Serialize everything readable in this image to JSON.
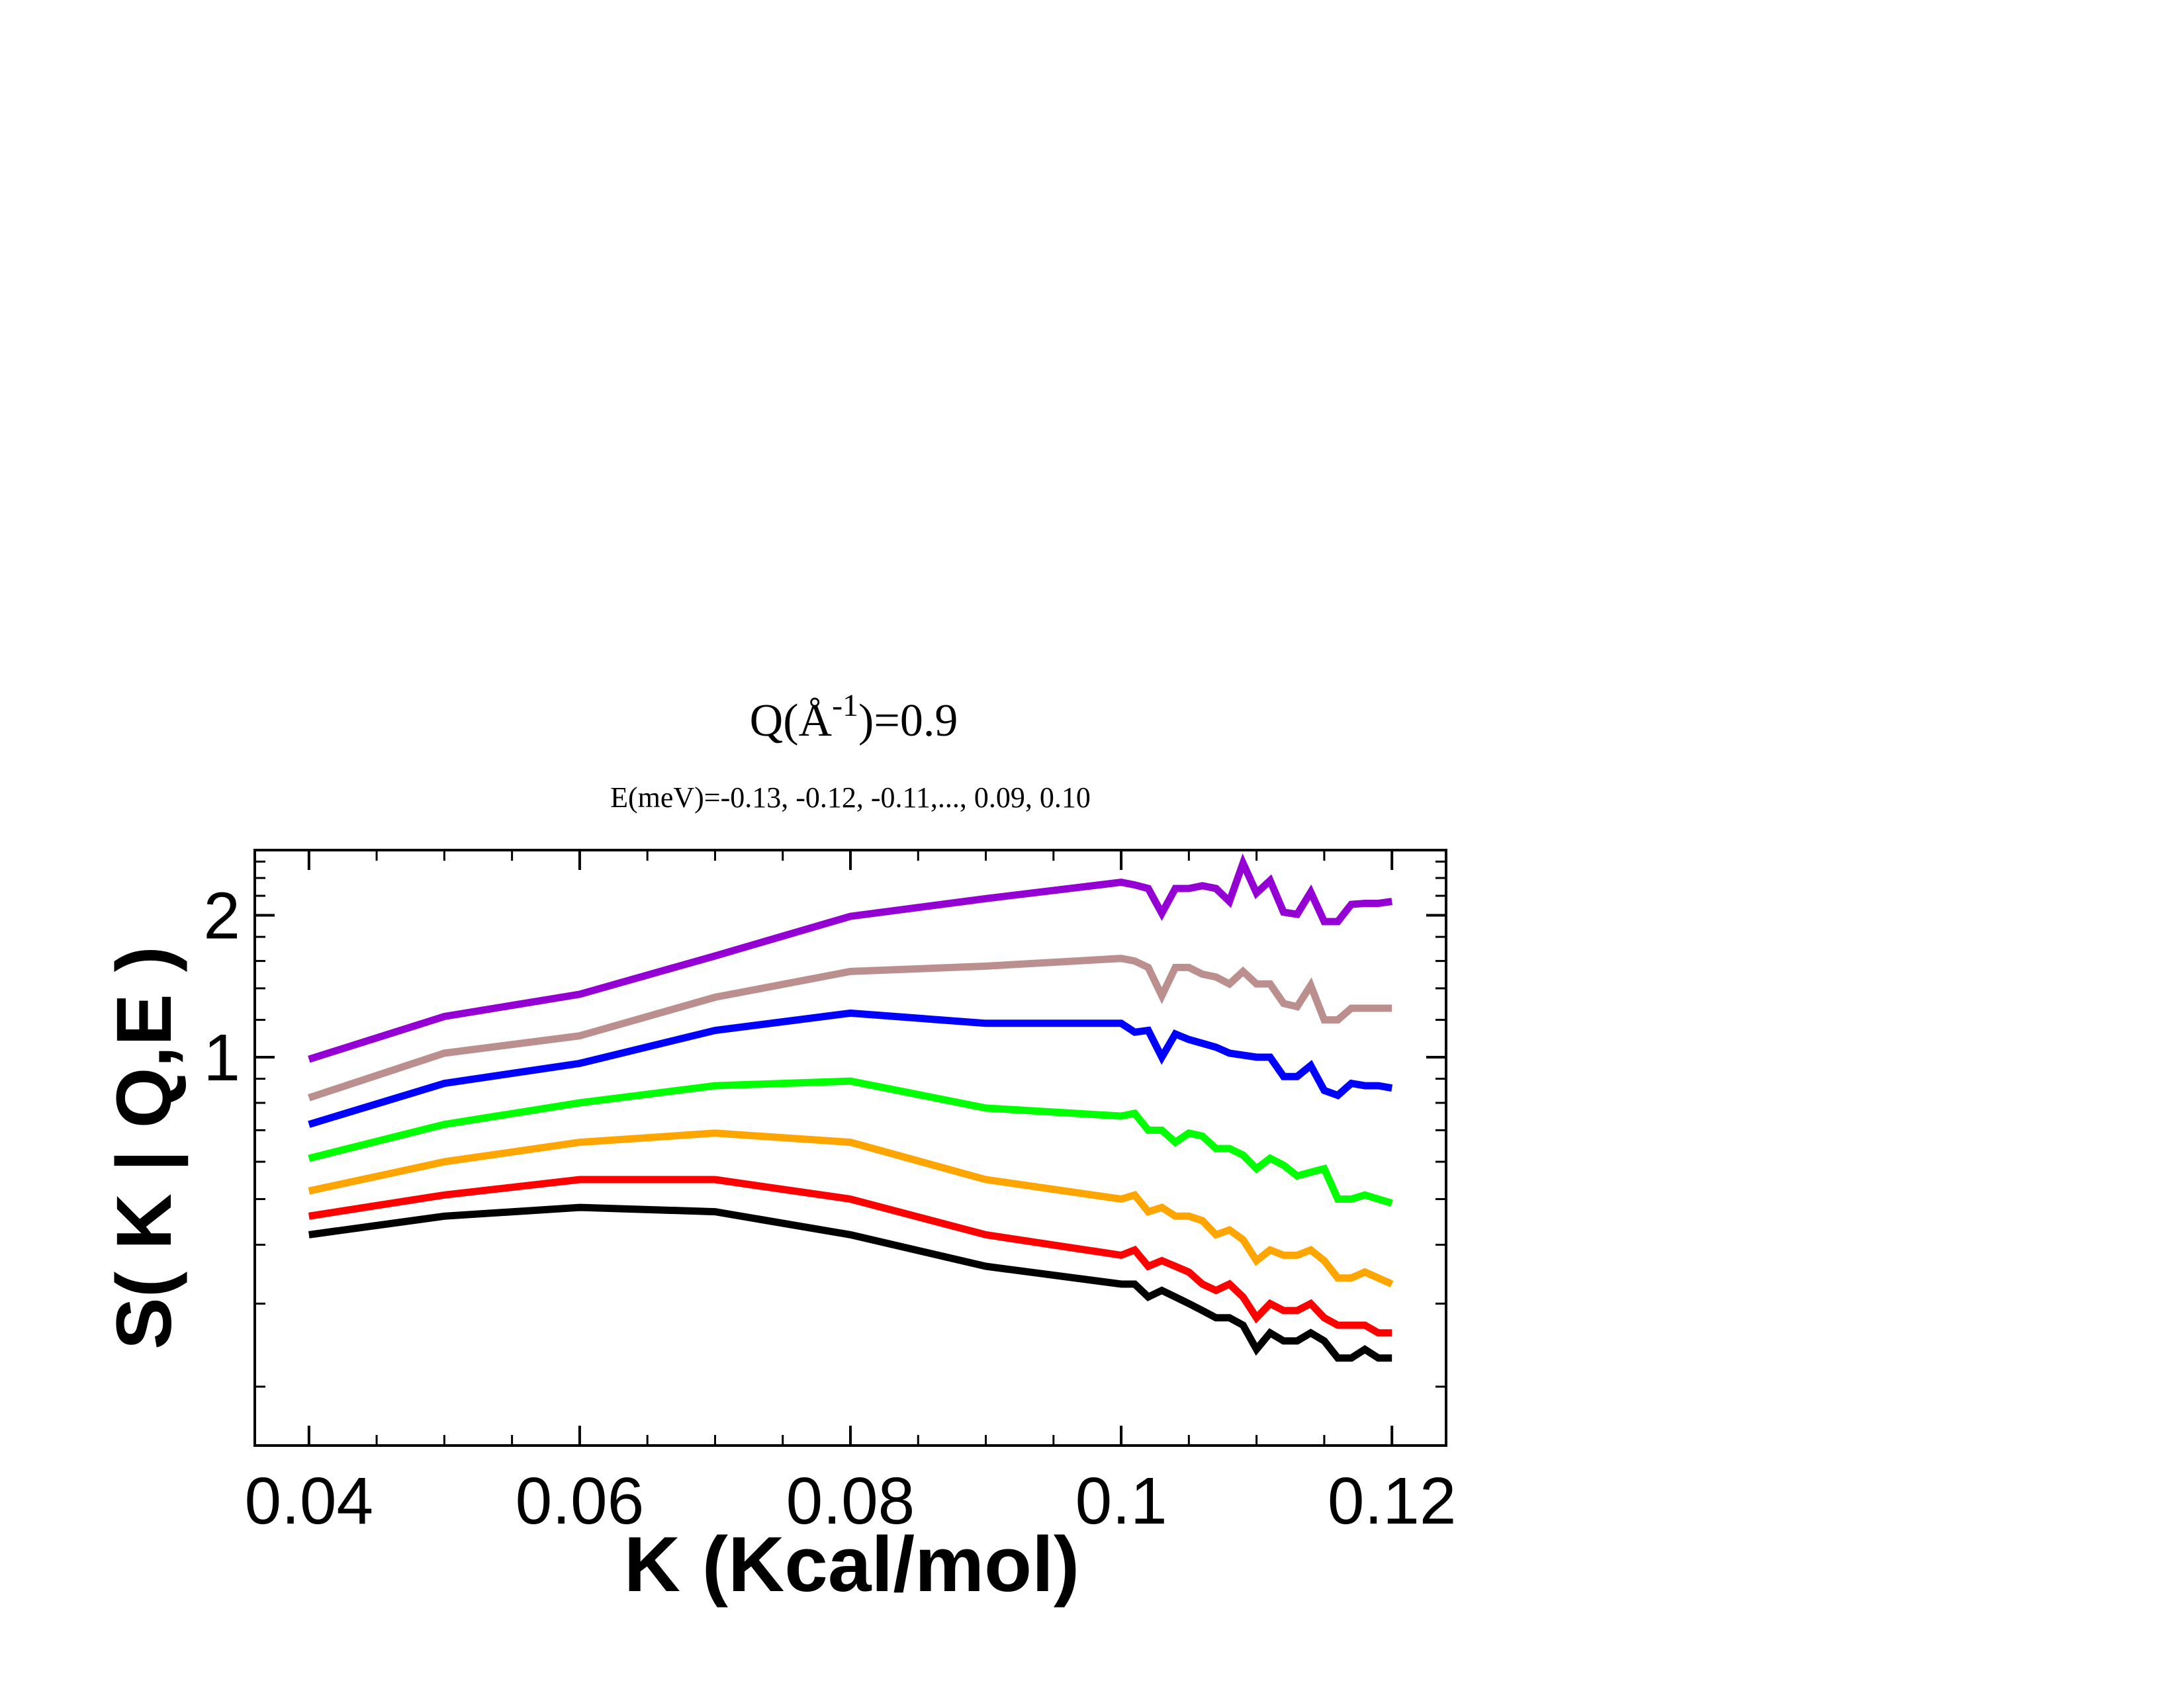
{
  "chart_data": {
    "type": "line",
    "title": "Q(Å",
    "title_sup": "-1",
    "title_tail": ")=0.9",
    "subtitle": "E(meV)=-0.13, -0.12, -0.11,..., 0.09, 0.10",
    "xlabel": "K (Kcal/mol)",
    "ylabel": "S( K | Q,E )",
    "xlim": [
      0.036,
      0.124
    ],
    "ylim": [
      0.15,
      2.75
    ],
    "y_scale": "log",
    "x_ticks": [
      0.04,
      0.06,
      0.08,
      0.1,
      0.12
    ],
    "x_tick_labels": [
      "0.04",
      "0.06",
      "0.08",
      "0.1",
      "0.12"
    ],
    "y_ticks": [
      1,
      2
    ],
    "y_tick_labels": [
      "1",
      "2"
    ],
    "grid": false,
    "legend": "none",
    "x": [
      0.04,
      0.05,
      0.06,
      0.07,
      0.08,
      0.09,
      0.1,
      0.101,
      0.102,
      0.103,
      0.104,
      0.105,
      0.106,
      0.107,
      0.108,
      0.109,
      0.11,
      0.111,
      0.112,
      0.113,
      0.114,
      0.115,
      0.116,
      0.117,
      0.118,
      0.119,
      0.12
    ],
    "series": [
      {
        "color": "#9400d3",
        "values": [
          0.99,
          1.22,
          1.36,
          1.64,
          1.99,
          2.17,
          2.35,
          2.32,
          2.28,
          2.02,
          2.28,
          2.28,
          2.31,
          2.28,
          2.14,
          2.58,
          2.23,
          2.37,
          2.03,
          2.01,
          2.24,
          1.94,
          1.94,
          2.11,
          2.12,
          2.12,
          2.14
        ]
      },
      {
        "color": "#bc8f8f",
        "values": [
          0.82,
          1.02,
          1.11,
          1.34,
          1.52,
          1.56,
          1.62,
          1.6,
          1.55,
          1.35,
          1.55,
          1.55,
          1.5,
          1.48,
          1.43,
          1.52,
          1.43,
          1.43,
          1.3,
          1.28,
          1.42,
          1.2,
          1.2,
          1.27,
          1.27,
          1.27,
          1.27
        ]
      },
      {
        "color": "#0000ff",
        "values": [
          0.72,
          0.88,
          0.97,
          1.14,
          1.24,
          1.18,
          1.18,
          1.13,
          1.14,
          1.0,
          1.12,
          1.09,
          1.07,
          1.05,
          1.02,
          1.01,
          1.0,
          1.0,
          0.91,
          0.91,
          0.96,
          0.85,
          0.83,
          0.88,
          0.87,
          0.87,
          0.86
        ]
      },
      {
        "color": "#00ff00",
        "values": [
          0.61,
          0.72,
          0.8,
          0.87,
          0.89,
          0.78,
          0.75,
          0.76,
          0.7,
          0.7,
          0.66,
          0.69,
          0.68,
          0.64,
          0.64,
          0.62,
          0.58,
          0.61,
          0.59,
          0.56,
          0.57,
          0.58,
          0.5,
          0.5,
          0.51,
          0.5,
          0.49
        ]
      },
      {
        "color": "#ffa500",
        "values": [
          0.52,
          0.6,
          0.66,
          0.69,
          0.66,
          0.55,
          0.5,
          0.51,
          0.47,
          0.48,
          0.46,
          0.46,
          0.45,
          0.42,
          0.43,
          0.41,
          0.37,
          0.39,
          0.38,
          0.38,
          0.39,
          0.37,
          0.34,
          0.34,
          0.35,
          0.34,
          0.33
        ]
      },
      {
        "color": "#ff0000",
        "values": [
          0.46,
          0.51,
          0.55,
          0.55,
          0.5,
          0.42,
          0.38,
          0.39,
          0.36,
          0.37,
          0.36,
          0.35,
          0.33,
          0.32,
          0.33,
          0.31,
          0.28,
          0.3,
          0.29,
          0.29,
          0.3,
          0.28,
          0.27,
          0.27,
          0.27,
          0.26,
          0.26
        ]
      },
      {
        "color": "#000000",
        "values": [
          0.42,
          0.46,
          0.48,
          0.47,
          0.42,
          0.36,
          0.33,
          0.33,
          0.31,
          0.32,
          0.31,
          0.3,
          0.29,
          0.28,
          0.28,
          0.27,
          0.24,
          0.26,
          0.25,
          0.25,
          0.26,
          0.25,
          0.23,
          0.23,
          0.24,
          0.23,
          0.23
        ]
      }
    ]
  }
}
